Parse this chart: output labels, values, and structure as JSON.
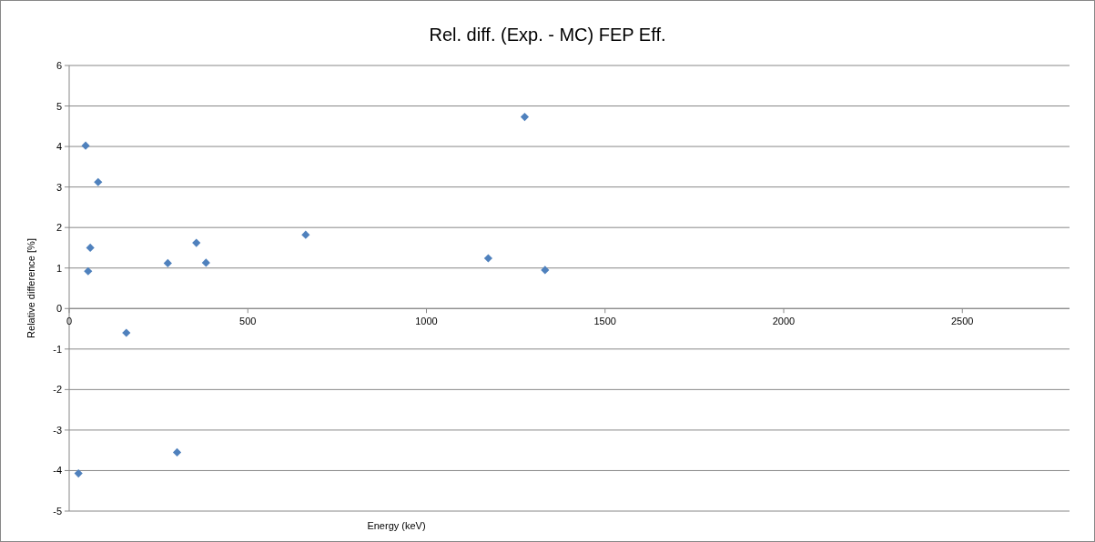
{
  "chart_data": {
    "type": "scatter",
    "title": "Rel. diff. (Exp. - MC) FEP Eff.",
    "xlabel": "Energy (keV)",
    "ylabel": "Relative difference [%]",
    "x": [
      26,
      46,
      53,
      59,
      81,
      160,
      276,
      302,
      356,
      383,
      662,
      1173,
      1275,
      1332
    ],
    "series": [
      {
        "color": "#4f81bd",
        "values": [
          -4.07,
          4.02,
          0.92,
          1.5,
          3.12,
          -0.6,
          1.12,
          -3.55,
          1.62,
          1.13,
          1.82,
          1.24,
          4.73,
          0.95
        ]
      }
    ],
    "xlim": [
      0,
      2800
    ],
    "xticks": [
      0,
      500,
      1000,
      1500,
      2000,
      2500
    ],
    "ylim": [
      -5,
      6
    ],
    "yticks": [
      -5,
      -4,
      -3,
      -2,
      -1,
      0,
      1,
      2,
      3,
      4,
      5,
      6
    ],
    "grid": "y",
    "marker": "diamond"
  }
}
